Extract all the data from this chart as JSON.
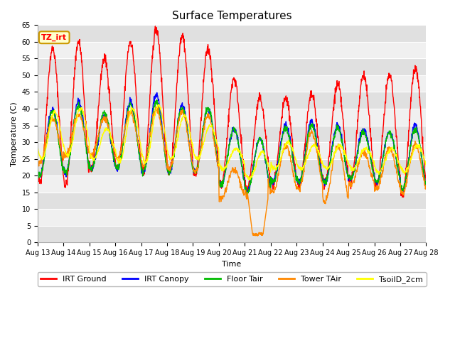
{
  "title": "Surface Temperatures",
  "xlabel": "Time",
  "ylabel": "Temperature (C)",
  "ylim": [
    0,
    65
  ],
  "yticks": [
    0,
    5,
    10,
    15,
    20,
    25,
    30,
    35,
    40,
    45,
    50,
    55,
    60,
    65
  ],
  "xtick_labels": [
    "Aug 13",
    "Aug 14",
    "Aug 15",
    "Aug 16",
    "Aug 17",
    "Aug 18",
    "Aug 19",
    "Aug 20",
    "Aug 21",
    "Aug 22",
    "Aug 23",
    "Aug 24",
    "Aug 25",
    "Aug 26",
    "Aug 27",
    "Aug 28"
  ],
  "annotation_text": "TZ_irt",
  "annotation_fc": "#ffffcc",
  "annotation_ec": "#cc9900",
  "lines": {
    "IRT Ground": {
      "color": "#ff0000"
    },
    "IRT Canopy": {
      "color": "#0000ff"
    },
    "Floor Tair": {
      "color": "#00bb00"
    },
    "Tower TAir": {
      "color": "#ff8800"
    },
    "TsoilD_2cm": {
      "color": "#ffff00"
    }
  },
  "line_width": 1.0,
  "bg_color": "#ffffff",
  "plot_bg_color": "#e8e8e8",
  "band_colors": [
    "#e0e0e0",
    "#f0f0f0"
  ],
  "grid_color": "#ffffff",
  "figsize": [
    6.4,
    4.8
  ],
  "dpi": 100,
  "legend_fontsize": 8,
  "title_fontsize": 11,
  "axis_fontsize": 8,
  "tick_fontsize": 7
}
